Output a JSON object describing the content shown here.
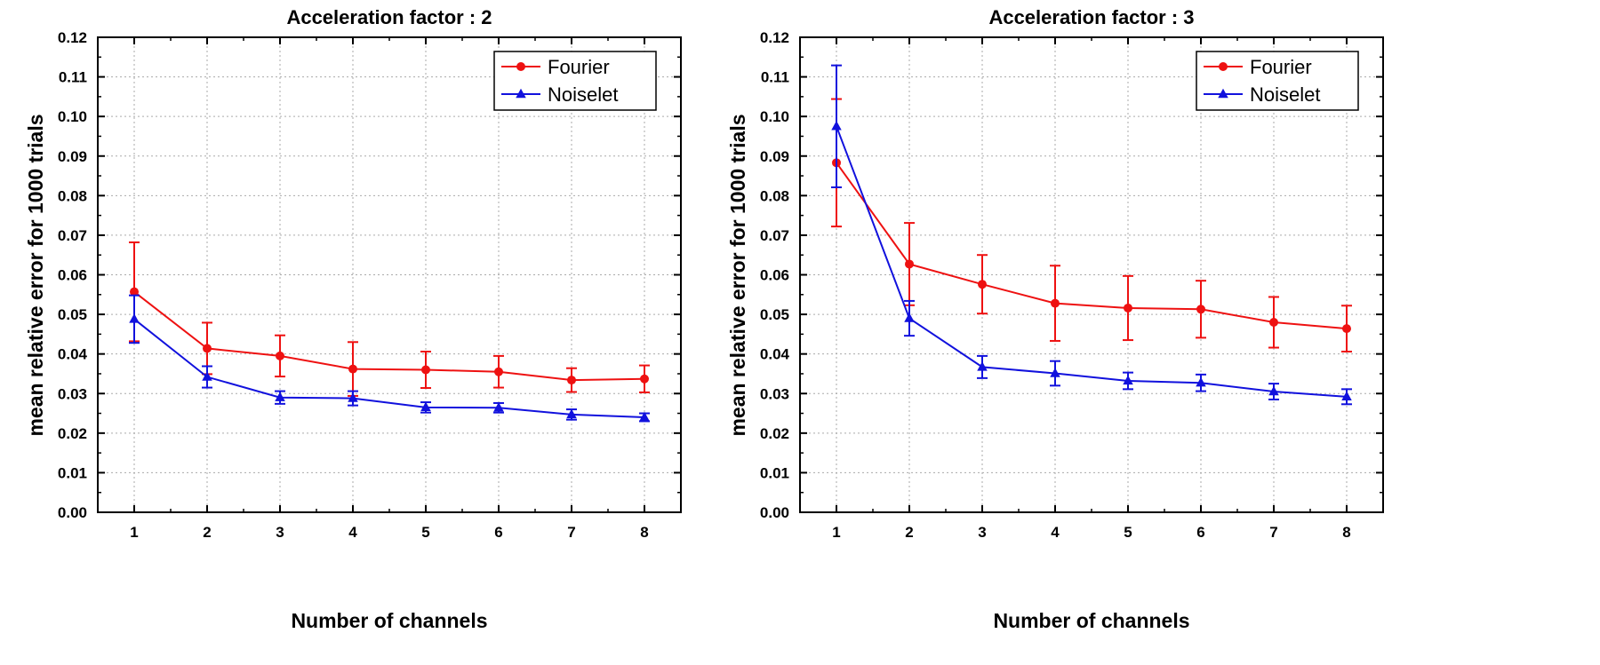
{
  "colors": {
    "fourier": "#ee1111",
    "noiselet": "#1111dd",
    "grid": "#aaaaaa",
    "axis": "#000000"
  },
  "chart_data": [
    {
      "type": "line",
      "title": "Acceleration factor : 2",
      "xlabel": "Number of channels",
      "ylabel": "mean relative error for 1000 trials",
      "x": [
        1,
        2,
        3,
        4,
        5,
        6,
        7,
        8
      ],
      "xlim": [
        0.5,
        8.5
      ],
      "ylim": [
        0.0,
        0.12
      ],
      "yticks": [
        "0.00",
        "0.01",
        "0.02",
        "0.03",
        "0.04",
        "0.05",
        "0.06",
        "0.07",
        "0.08",
        "0.09",
        "0.10",
        "0.11",
        "0.12"
      ],
      "xticks": [
        "1",
        "2",
        "3",
        "4",
        "5",
        "6",
        "7",
        "8"
      ],
      "grid": true,
      "legend_position": "top-right",
      "series": [
        {
          "name": "Fourier",
          "marker": "circle",
          "color": "#ee1111",
          "values": [
            0.0557,
            0.0414,
            0.0395,
            0.0362,
            0.036,
            0.0355,
            0.0334,
            0.0337
          ],
          "error": [
            0.0125,
            0.0065,
            0.0052,
            0.0068,
            0.0046,
            0.004,
            0.003,
            0.0034
          ]
        },
        {
          "name": "Noiselet",
          "marker": "triangle",
          "color": "#1111dd",
          "values": [
            0.0488,
            0.0342,
            0.029,
            0.0288,
            0.0265,
            0.0264,
            0.0247,
            0.024
          ],
          "error": [
            0.006,
            0.0027,
            0.0016,
            0.0018,
            0.0013,
            0.0012,
            0.0013,
            0.001
          ]
        }
      ]
    },
    {
      "type": "line",
      "title": "Acceleration factor : 3",
      "xlabel": "Number of channels",
      "ylabel": "mean relative error for 1000 trials",
      "x": [
        1,
        2,
        3,
        4,
        5,
        6,
        7,
        8
      ],
      "xlim": [
        0.5,
        8.5
      ],
      "ylim": [
        0.0,
        0.12
      ],
      "yticks": [
        "0.00",
        "0.01",
        "0.02",
        "0.03",
        "0.04",
        "0.05",
        "0.06",
        "0.07",
        "0.08",
        "0.09",
        "0.10",
        "0.11",
        "0.12"
      ],
      "xticks": [
        "1",
        "2",
        "3",
        "4",
        "5",
        "6",
        "7",
        "8"
      ],
      "grid": true,
      "legend_position": "top-right",
      "series": [
        {
          "name": "Fourier",
          "marker": "circle",
          "color": "#ee1111",
          "values": [
            0.0883,
            0.0627,
            0.0576,
            0.0528,
            0.0516,
            0.0513,
            0.048,
            0.0464
          ],
          "error": [
            0.0161,
            0.0104,
            0.0074,
            0.0095,
            0.0081,
            0.0072,
            0.0064,
            0.0058
          ]
        },
        {
          "name": "Noiselet",
          "marker": "triangle",
          "color": "#1111dd",
          "values": [
            0.0975,
            0.049,
            0.0367,
            0.0351,
            0.0332,
            0.0327,
            0.0305,
            0.0292
          ],
          "error": [
            0.0154,
            0.0044,
            0.0028,
            0.0031,
            0.0021,
            0.0021,
            0.002,
            0.0019
          ]
        }
      ]
    }
  ]
}
